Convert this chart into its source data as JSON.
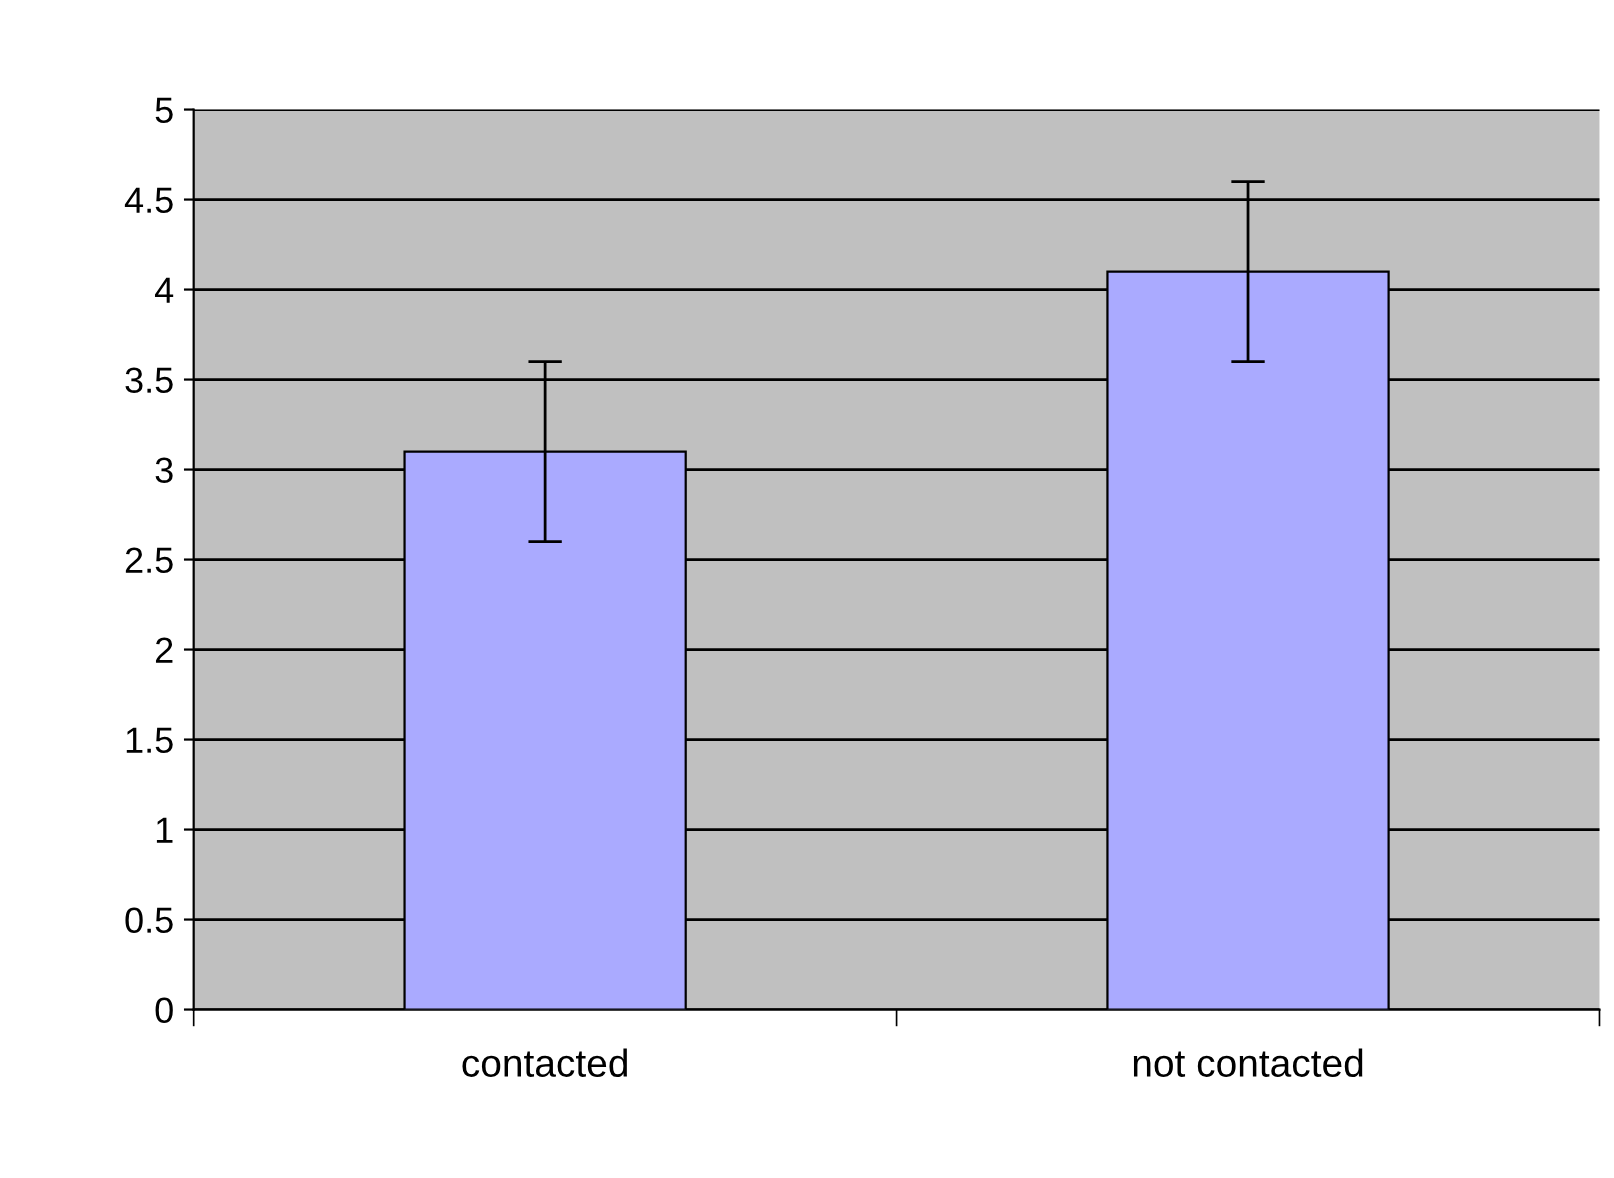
{
  "chart_data": {
    "type": "bar",
    "categories": [
      "contacted",
      "not contacted"
    ],
    "values": [
      3.1,
      4.1
    ],
    "errors": [
      0.5,
      0.5
    ],
    "color": "#aaaaff",
    "ylim": [
      0,
      5
    ],
    "yticks": [
      0,
      0.5,
      1,
      1.5,
      2,
      2.5,
      3,
      3.5,
      4,
      4.5,
      5
    ],
    "grid": "y"
  }
}
